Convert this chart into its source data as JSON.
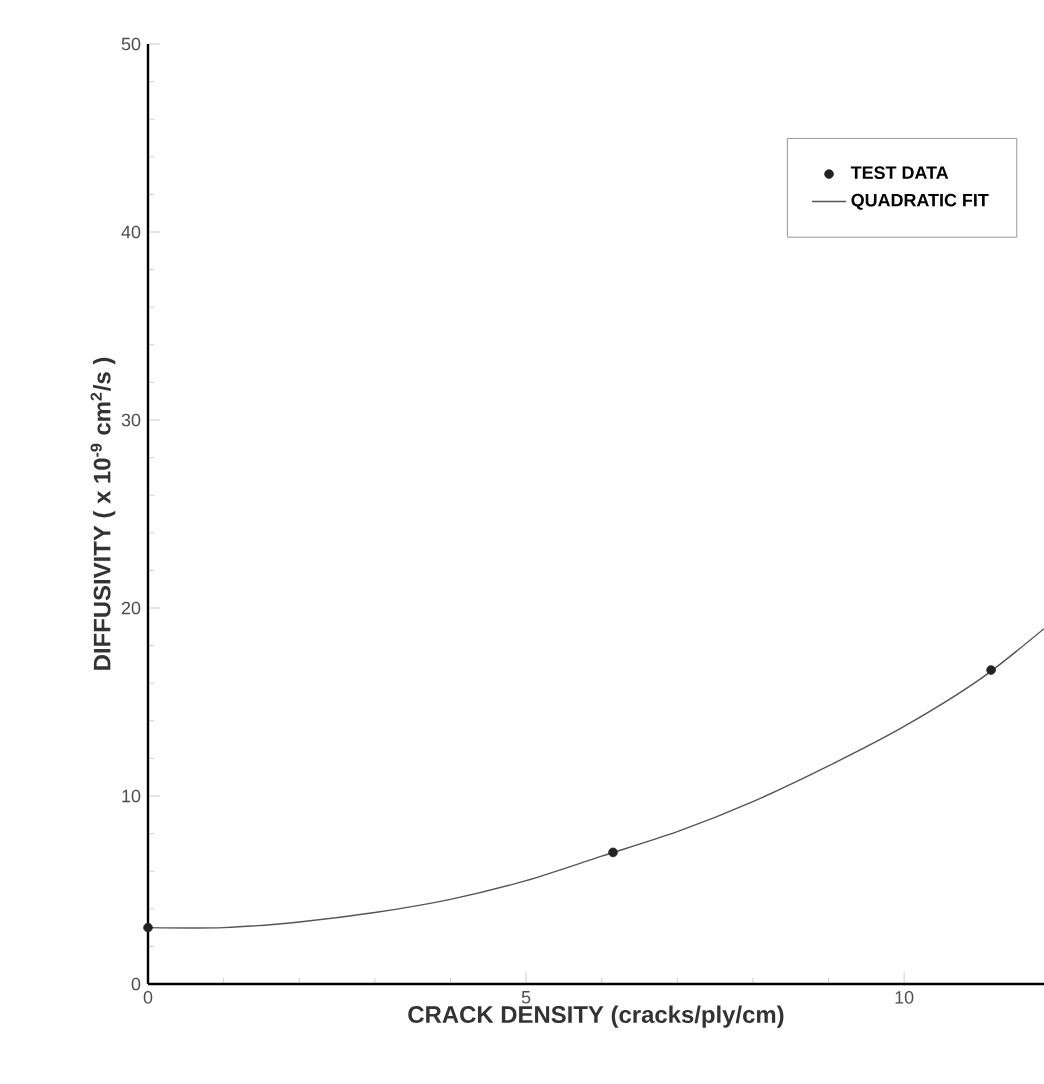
{
  "chart_data": {
    "type": "scatter",
    "xlabel": "CRACK DENSITY (cracks/ply/cm)",
    "ylabel": "DIFFUSIVITY ( x 10$^{-9}$ cm$^{2}$/s )",
    "xlim": [
      0,
      11.85
    ],
    "ylim": [
      0,
      50
    ],
    "xticks": [
      0,
      5,
      10
    ],
    "yticks": [
      0,
      10,
      20,
      30,
      40,
      50
    ],
    "legend": "top right",
    "grid": false,
    "series": [
      {
        "name": "TEST DATA",
        "marker": "circle",
        "color": "#222222",
        "x": [
          0,
          6.15,
          11.15
        ],
        "values": [
          3.0,
          7.0,
          16.7
        ]
      },
      {
        "name": "QUADRATIC FIT",
        "type": "line",
        "marker": "none",
        "line_style": "solid",
        "color": "#555555",
        "x": [
          0,
          1,
          2,
          3,
          4,
          5,
          6,
          7,
          8,
          9,
          10,
          11,
          11.85
        ],
        "values": [
          3.0,
          3.0,
          3.3,
          3.8,
          4.5,
          5.5,
          6.8,
          8.1,
          9.7,
          11.6,
          13.7,
          16.2,
          18.9
        ]
      }
    ]
  }
}
